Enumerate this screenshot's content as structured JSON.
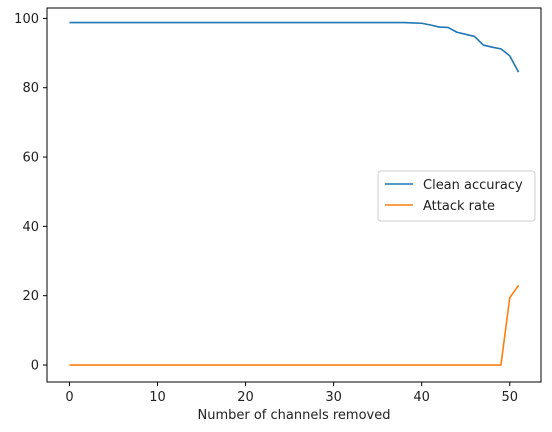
{
  "chart_data": {
    "type": "line",
    "xlabel": "Number of channels removed",
    "ylabel": "",
    "xlim": [
      -2.55,
      53.55
    ],
    "ylim": [
      -4.9,
      103.0
    ],
    "xticks": [
      0,
      10,
      20,
      30,
      40,
      50
    ],
    "yticks": [
      0,
      20,
      40,
      60,
      80,
      100
    ],
    "xtick_labels": [
      "0",
      "10",
      "20",
      "30",
      "40",
      "50"
    ],
    "ytick_labels": [
      "0",
      "20",
      "40",
      "60",
      "80",
      "100"
    ],
    "grid": false,
    "legend_position": "center-right",
    "series": [
      {
        "name": "Clean accuracy",
        "color": "#1f77b4",
        "x": [
          0,
          1,
          2,
          3,
          4,
          5,
          6,
          7,
          8,
          9,
          10,
          11,
          12,
          13,
          14,
          15,
          16,
          17,
          18,
          19,
          20,
          21,
          22,
          23,
          24,
          25,
          26,
          27,
          28,
          29,
          30,
          31,
          32,
          33,
          34,
          35,
          36,
          37,
          38,
          39,
          40,
          41,
          42,
          43,
          44,
          45,
          46,
          47,
          48,
          49,
          50,
          51
        ],
        "values": [
          98.8,
          98.8,
          98.8,
          98.8,
          98.8,
          98.8,
          98.8,
          98.8,
          98.8,
          98.8,
          98.8,
          98.8,
          98.8,
          98.8,
          98.8,
          98.8,
          98.8,
          98.8,
          98.8,
          98.8,
          98.8,
          98.8,
          98.8,
          98.8,
          98.8,
          98.8,
          98.8,
          98.8,
          98.8,
          98.8,
          98.8,
          98.8,
          98.8,
          98.8,
          98.8,
          98.8,
          98.8,
          98.8,
          98.8,
          98.7,
          98.6,
          98.1,
          97.5,
          97.4,
          96.0,
          95.4,
          94.8,
          92.3,
          91.7,
          91.2,
          89.2,
          84.5
        ]
      },
      {
        "name": "Attack rate",
        "color": "#ff7f0e",
        "x": [
          0,
          1,
          2,
          3,
          4,
          5,
          6,
          7,
          8,
          9,
          10,
          11,
          12,
          13,
          14,
          15,
          16,
          17,
          18,
          19,
          20,
          21,
          22,
          23,
          24,
          25,
          26,
          27,
          28,
          29,
          30,
          31,
          32,
          33,
          34,
          35,
          36,
          37,
          38,
          39,
          40,
          41,
          42,
          43,
          44,
          45,
          46,
          47,
          48,
          49,
          50,
          51
        ],
        "values": [
          0,
          0,
          0,
          0,
          0,
          0,
          0,
          0,
          0,
          0,
          0,
          0,
          0,
          0,
          0,
          0,
          0,
          0,
          0,
          0,
          0,
          0,
          0,
          0,
          0,
          0,
          0,
          0,
          0,
          0,
          0,
          0,
          0,
          0,
          0,
          0,
          0,
          0,
          0,
          0,
          0,
          0,
          0,
          0,
          0,
          0,
          0,
          0,
          0,
          0,
          19.4,
          23.0
        ]
      }
    ]
  }
}
